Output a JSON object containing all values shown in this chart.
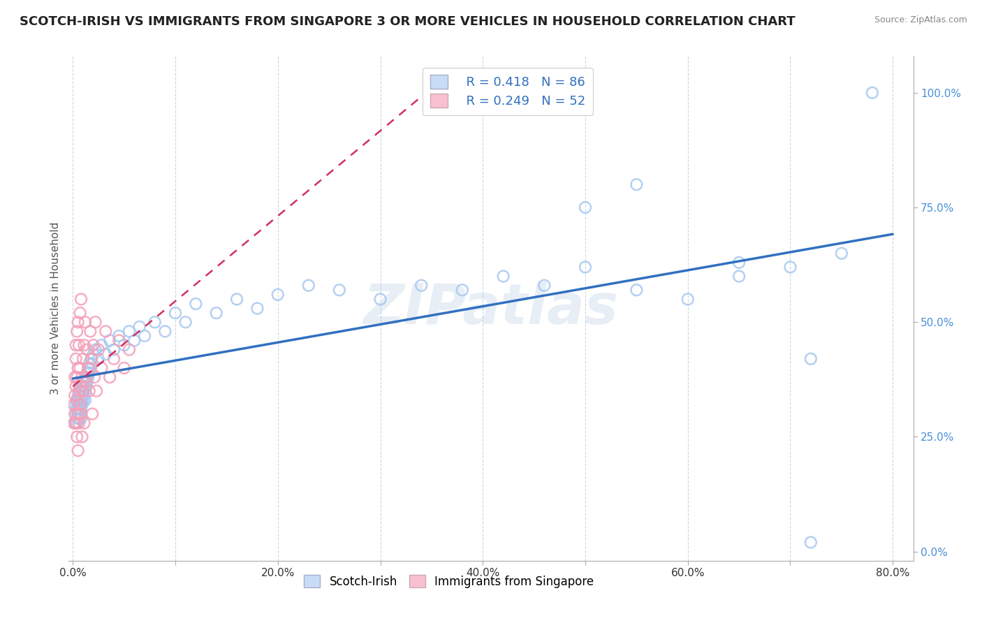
{
  "title": "SCOTCH-IRISH VS IMMIGRANTS FROM SINGAPORE 3 OR MORE VEHICLES IN HOUSEHOLD CORRELATION CHART",
  "source_text": "Source: ZipAtlas.com",
  "ylabel": "3 or more Vehicles in Household",
  "legend_labels": [
    "Scotch-Irish",
    "Immigrants from Singapore"
  ],
  "R_blue": 0.418,
  "N_blue": 86,
  "R_pink": 0.249,
  "N_pink": 52,
  "blue_color": "#a8c8f0",
  "pink_color": "#f4a0b8",
  "trendline_blue": "#3070c0",
  "trendline_pink": "#d03060",
  "watermark": "ZIPatlas",
  "xlim": [
    -0.004,
    0.82
  ],
  "ylim": [
    -0.02,
    1.08
  ],
  "background_color": "#ffffff",
  "grid_color": "#c8d8e8",
  "title_fontsize": 13,
  "axis_label_fontsize": 11,
  "tick_fontsize": 11,
  "blue_x": [
    0.002,
    0.003,
    0.003,
    0.004,
    0.004,
    0.004,
    0.005,
    0.005,
    0.005,
    0.005,
    0.006,
    0.006,
    0.006,
    0.006,
    0.006,
    0.007,
    0.007,
    0.007,
    0.007,
    0.008,
    0.008,
    0.008,
    0.008,
    0.009,
    0.009,
    0.009,
    0.01,
    0.01,
    0.01,
    0.011,
    0.011,
    0.012,
    0.012,
    0.012,
    0.013,
    0.013,
    0.014,
    0.014,
    0.015,
    0.015,
    0.016,
    0.016,
    0.017,
    0.018,
    0.019,
    0.02,
    0.022,
    0.025,
    0.028,
    0.032,
    0.036,
    0.04,
    0.045,
    0.05,
    0.055,
    0.06,
    0.065,
    0.07,
    0.08,
    0.09,
    0.1,
    0.11,
    0.12,
    0.14,
    0.16,
    0.18,
    0.2,
    0.23,
    0.26,
    0.3,
    0.34,
    0.38,
    0.42,
    0.46,
    0.5,
    0.55,
    0.6,
    0.65,
    0.7,
    0.72,
    0.75,
    0.78,
    0.5,
    0.55,
    0.65,
    0.72
  ],
  "blue_y": [
    0.28,
    0.3,
    0.32,
    0.28,
    0.33,
    0.31,
    0.29,
    0.32,
    0.34,
    0.3,
    0.31,
    0.33,
    0.29,
    0.35,
    0.3,
    0.32,
    0.34,
    0.3,
    0.36,
    0.33,
    0.31,
    0.35,
    0.29,
    0.34,
    0.36,
    0.32,
    0.35,
    0.33,
    0.37,
    0.34,
    0.36,
    0.35,
    0.37,
    0.33,
    0.36,
    0.38,
    0.37,
    0.39,
    0.38,
    0.4,
    0.39,
    0.41,
    0.4,
    0.42,
    0.41,
    0.43,
    0.44,
    0.42,
    0.45,
    0.43,
    0.46,
    0.44,
    0.47,
    0.45,
    0.48,
    0.46,
    0.49,
    0.47,
    0.5,
    0.48,
    0.52,
    0.5,
    0.54,
    0.52,
    0.55,
    0.53,
    0.56,
    0.58,
    0.57,
    0.55,
    0.58,
    0.57,
    0.6,
    0.58,
    0.62,
    0.57,
    0.55,
    0.6,
    0.62,
    0.42,
    0.65,
    1.0,
    0.75,
    0.8,
    0.63,
    0.02
  ],
  "pink_x": [
    0.001,
    0.001,
    0.002,
    0.002,
    0.002,
    0.003,
    0.003,
    0.003,
    0.003,
    0.004,
    0.004,
    0.004,
    0.004,
    0.005,
    0.005,
    0.005,
    0.005,
    0.006,
    0.006,
    0.006,
    0.007,
    0.007,
    0.007,
    0.008,
    0.008,
    0.008,
    0.009,
    0.009,
    0.01,
    0.01,
    0.011,
    0.011,
    0.012,
    0.013,
    0.014,
    0.015,
    0.016,
    0.017,
    0.018,
    0.019,
    0.02,
    0.021,
    0.022,
    0.023,
    0.025,
    0.028,
    0.032,
    0.036,
    0.04,
    0.045,
    0.05,
    0.055
  ],
  "pink_y": [
    0.28,
    0.32,
    0.3,
    0.38,
    0.34,
    0.36,
    0.42,
    0.28,
    0.45,
    0.33,
    0.38,
    0.25,
    0.48,
    0.4,
    0.3,
    0.5,
    0.22,
    0.35,
    0.45,
    0.28,
    0.4,
    0.32,
    0.52,
    0.36,
    0.3,
    0.55,
    0.38,
    0.25,
    0.42,
    0.35,
    0.45,
    0.28,
    0.5,
    0.38,
    0.44,
    0.4,
    0.35,
    0.48,
    0.42,
    0.3,
    0.45,
    0.38,
    0.5,
    0.35,
    0.44,
    0.4,
    0.48,
    0.38,
    0.42,
    0.46,
    0.4,
    0.44
  ],
  "pink_trend_x": [
    0.0,
    0.055
  ],
  "pink_trend_y": [
    0.28,
    0.56
  ],
  "blue_trend_x": [
    0.0,
    0.8
  ],
  "blue_trend_y": [
    0.28,
    0.65
  ]
}
